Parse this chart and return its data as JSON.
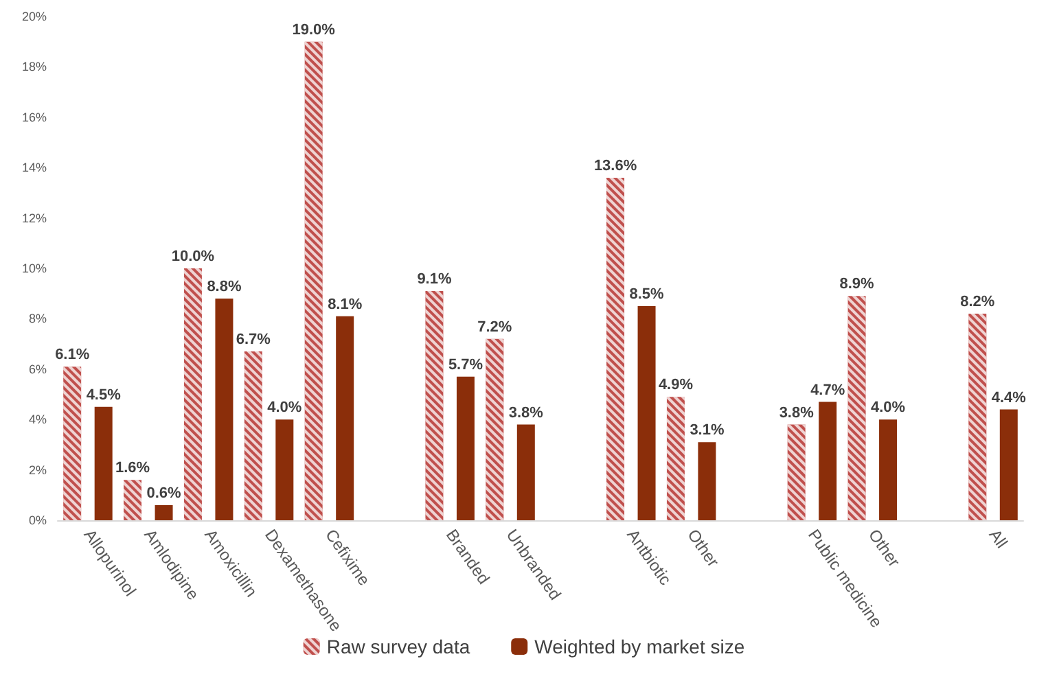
{
  "chart_data": {
    "type": "bar",
    "categories": [
      "Allopurinol",
      "Amlodipine",
      "Amoxicillin",
      "Dexamethasone",
      "Cefixime",
      null,
      "Branded",
      "Unbranded",
      null,
      "Antbiotic",
      "Other",
      null,
      "Public medicine",
      "Other",
      null,
      "All"
    ],
    "series": [
      {
        "name": "Raw survey data",
        "color": "#c0504d",
        "values": [
          6.1,
          1.6,
          10.0,
          6.7,
          19.0,
          null,
          9.1,
          7.2,
          null,
          13.6,
          4.9,
          null,
          3.8,
          8.9,
          null,
          8.2
        ],
        "value_labels": [
          "6.1%",
          "1.6%",
          "10.0%",
          "6.7%",
          "19.0%",
          null,
          "9.1%",
          "7.2%",
          null,
          "13.6%",
          "4.9%",
          null,
          "3.8%",
          "8.9%",
          null,
          "8.2%"
        ]
      },
      {
        "name": "Weighted by market size",
        "color": "#8b2e0a",
        "values": [
          4.5,
          0.6,
          8.8,
          4.0,
          8.1,
          null,
          5.7,
          3.8,
          null,
          8.5,
          3.1,
          null,
          4.7,
          4.0,
          null,
          4.4
        ],
        "value_labels": [
          "4.5%",
          "0.6%",
          "8.8%",
          "4.0%",
          "8.1%",
          null,
          "5.7%",
          "3.8%",
          null,
          "8.5%",
          "3.1%",
          null,
          "4.7%",
          "4.0%",
          null,
          "4.4%"
        ]
      }
    ],
    "ylim": [
      0,
      20
    ],
    "yticks": [
      {
        "value": 0,
        "label": "0%"
      },
      {
        "value": 2,
        "label": "2%"
      },
      {
        "value": 4,
        "label": "4%"
      },
      {
        "value": 6,
        "label": "6%"
      },
      {
        "value": 8,
        "label": "8%"
      },
      {
        "value": 10,
        "label": "10%"
      },
      {
        "value": 12,
        "label": "12%"
      },
      {
        "value": 14,
        "label": "14%"
      },
      {
        "value": 16,
        "label": "16%"
      },
      {
        "value": 18,
        "label": "18%"
      },
      {
        "value": 20,
        "label": "20%"
      }
    ],
    "grid": false,
    "legend": "bottom"
  }
}
